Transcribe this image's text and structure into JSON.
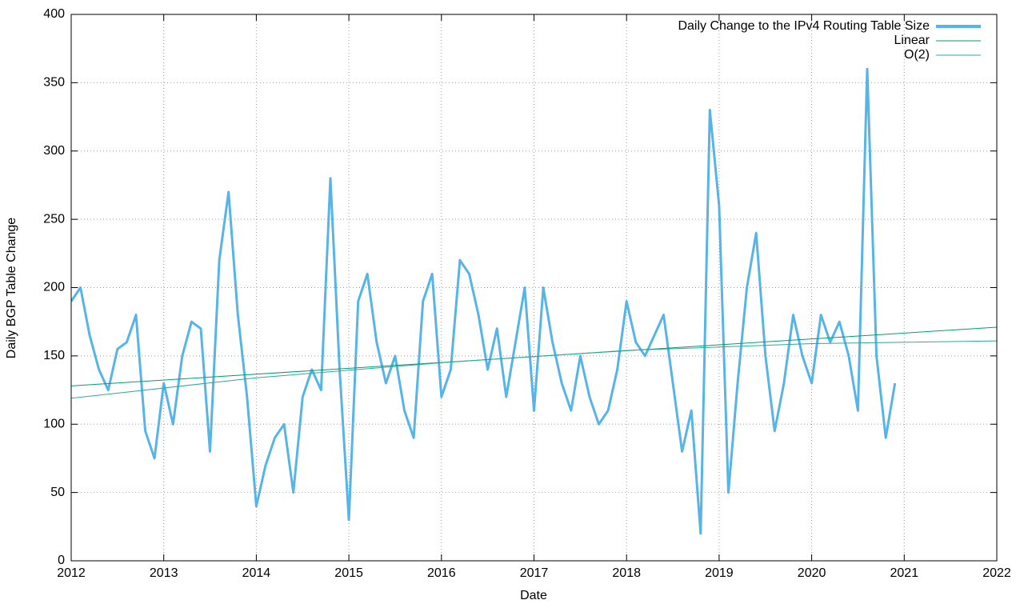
{
  "chart_data": {
    "type": "line",
    "xlabel": "Date",
    "ylabel": "Daily BGP Table Change",
    "xlim": [
      2012,
      2022
    ],
    "xticks": [
      2012,
      2013,
      2014,
      2015,
      2016,
      2017,
      2018,
      2019,
      2020,
      2021,
      2022
    ],
    "ylim": [
      0,
      400
    ],
    "yticks": [
      0,
      50,
      100,
      150,
      200,
      250,
      300,
      350,
      400
    ],
    "grid": true,
    "legend": "top-right",
    "series": [
      {
        "name": "Daily Change to the IPv4 Routing Table Size",
        "color": "#56b4e9",
        "x": [
          2012,
          2012.1,
          2012.2,
          2012.3,
          2012.4,
          2012.5,
          2012.6,
          2012.7,
          2012.8,
          2012.9,
          2013,
          2013.1,
          2013.2,
          2013.3,
          2013.4,
          2013.5,
          2013.6,
          2013.7,
          2013.8,
          2013.9,
          2014,
          2014.1,
          2014.2,
          2014.3,
          2014.4,
          2014.5,
          2014.6,
          2014.7,
          2014.8,
          2014.9,
          2015,
          2015.1,
          2015.2,
          2015.3,
          2015.4,
          2015.5,
          2015.6,
          2015.7,
          2015.8,
          2015.9,
          2016,
          2016.1,
          2016.2,
          2016.3,
          2016.4,
          2016.5,
          2016.6,
          2016.7,
          2016.8,
          2016.9,
          2017,
          2017.1,
          2017.2,
          2017.3,
          2017.4,
          2017.5,
          2017.6,
          2017.7,
          2017.8,
          2017.9,
          2018,
          2018.1,
          2018.2,
          2018.3,
          2018.4,
          2018.5,
          2018.6,
          2018.7,
          2018.8,
          2018.9,
          2019,
          2019.1,
          2019.2,
          2019.3,
          2019.4,
          2019.5,
          2019.6,
          2019.7,
          2019.8,
          2019.9,
          2020,
          2020.1,
          2020.2,
          2020.3,
          2020.4,
          2020.5,
          2020.6,
          2020.7,
          2020.8,
          2020.9
        ],
        "values": [
          190,
          200,
          165,
          140,
          125,
          155,
          160,
          180,
          95,
          75,
          130,
          100,
          150,
          175,
          170,
          80,
          220,
          270,
          180,
          120,
          40,
          70,
          90,
          100,
          50,
          120,
          140,
          125,
          280,
          140,
          30,
          190,
          210,
          160,
          130,
          150,
          110,
          90,
          190,
          210,
          120,
          140,
          220,
          210,
          180,
          140,
          170,
          120,
          160,
          200,
          110,
          200,
          160,
          130,
          110,
          150,
          120,
          100,
          110,
          140,
          190,
          160,
          150,
          165,
          180,
          130,
          80,
          110,
          20,
          330,
          260,
          50,
          130,
          200,
          240,
          150,
          95,
          130,
          180,
          150,
          130,
          180,
          160,
          175,
          150,
          110,
          360,
          150,
          90,
          130
        ]
      },
      {
        "name": "Linear",
        "color": "#009e73",
        "x": [
          2012,
          2022
        ],
        "values": [
          128,
          171
        ]
      },
      {
        "name": "O(2)",
        "color": "#2ca8a0",
        "x": [
          2012,
          2014,
          2016,
          2018,
          2020,
          2022
        ],
        "values": [
          119,
          134,
          145,
          154,
          159,
          161
        ]
      }
    ]
  }
}
